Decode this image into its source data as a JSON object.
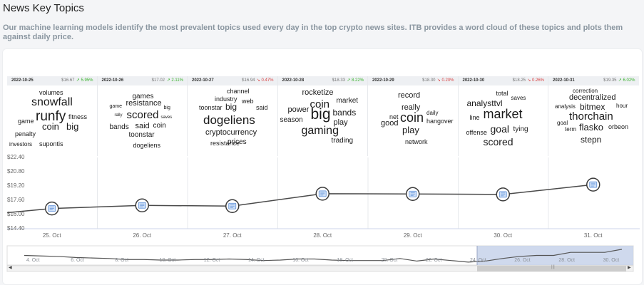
{
  "header": {
    "title": "News Key Topics",
    "subtitle": "Our machine learning models identify the most prevalent topics used every day in the top crypto news sites. ITB provides a word cloud of these topics and plots them against daily price."
  },
  "days": [
    {
      "date": "2022-10-25",
      "price": "$16.67",
      "change": "↗ 5.95%",
      "direction": "up",
      "words": [
        [
          "volumes",
          9
        ],
        [
          "snowfall",
          16
        ],
        [
          "runfy",
          19
        ],
        [
          "fitness",
          9
        ],
        [
          "game",
          9
        ],
        [
          "coin",
          13
        ],
        [
          "big",
          13
        ],
        [
          "penalty",
          9
        ],
        [
          "investors",
          8
        ],
        [
          "supontis",
          9
        ]
      ]
    },
    {
      "date": "2022-10-26",
      "price": "$17.02",
      "change": "↗ 2.11%",
      "direction": "up",
      "words": [
        [
          "games",
          10
        ],
        [
          "game",
          7
        ],
        [
          "resistance",
          11
        ],
        [
          "big",
          7
        ],
        [
          "rally",
          6
        ],
        [
          "scored",
          15
        ],
        [
          "saves",
          6
        ],
        [
          "bands",
          10
        ],
        [
          "said",
          11
        ],
        [
          "coin",
          10
        ],
        [
          "toonstar",
          10
        ],
        [
          "dogeliens",
          9
        ]
      ]
    },
    {
      "date": "2022-10-27",
      "price": "$16.94",
      "change": "↘ 0.47%",
      "direction": "down",
      "words": [
        [
          "channel",
          9
        ],
        [
          "industry",
          9
        ],
        [
          "web",
          9
        ],
        [
          "toonstar",
          9
        ],
        [
          "big",
          12
        ],
        [
          "said",
          9
        ],
        [
          "dogeliens",
          17
        ],
        [
          "cryptocurrency",
          11
        ],
        [
          "prices",
          10
        ],
        [
          "resistance",
          9
        ]
      ]
    },
    {
      "date": "2022-10-28",
      "price": "$18.33",
      "change": "↗ 8.22%",
      "direction": "up",
      "words": [
        [
          "rocketize",
          11
        ],
        [
          "market",
          10
        ],
        [
          "coin",
          15
        ],
        [
          "power",
          11
        ],
        [
          "big",
          21
        ],
        [
          "bands",
          12
        ],
        [
          "season",
          10
        ],
        [
          "play",
          11
        ],
        [
          "gaming",
          16
        ],
        [
          "trading",
          10
        ]
      ]
    },
    {
      "date": "2022-10-29",
      "price": "$18.30",
      "change": "↘ 0.20%",
      "direction": "down",
      "words": [
        [
          "record",
          11
        ],
        [
          "really",
          11
        ],
        [
          "net",
          9
        ],
        [
          "coin",
          18
        ],
        [
          "daily",
          8
        ],
        [
          "good",
          11
        ],
        [
          "hangover",
          9
        ],
        [
          "play",
          13
        ],
        [
          "network",
          9
        ]
      ]
    },
    {
      "date": "2022-10-30",
      "price": "$18.25",
      "change": "↘ 0.26%",
      "direction": "down",
      "words": [
        [
          "total",
          9
        ],
        [
          "analysttvl",
          12
        ],
        [
          "saves",
          8
        ],
        [
          "line",
          9
        ],
        [
          "market",
          18
        ],
        [
          "offense",
          9
        ],
        [
          "goal",
          14
        ],
        [
          "tying",
          10
        ],
        [
          "scored",
          14
        ]
      ]
    },
    {
      "date": "2022-10-31",
      "price": "$19.35",
      "change": "↗ 6.02%",
      "direction": "up",
      "words": [
        [
          "correction",
          8
        ],
        [
          "decentralized",
          11
        ],
        [
          "analysis",
          8
        ],
        [
          "bitmex",
          12
        ],
        [
          "hour",
          8
        ],
        [
          "thorchain",
          15
        ],
        [
          "goal",
          8
        ],
        [
          "term",
          8
        ],
        [
          "flasko",
          13
        ],
        [
          "orbeon",
          9
        ],
        [
          "stepn",
          12
        ]
      ]
    }
  ],
  "chart_data": {
    "type": "line",
    "x": [
      "25. Oct",
      "26. Oct",
      "27. Oct",
      "28. Oct",
      "29. Oct",
      "30. Oct",
      "31. Oct"
    ],
    "values": [
      16.67,
      17.02,
      16.94,
      18.33,
      18.3,
      18.25,
      19.35
    ],
    "y_ticks": [
      "$22.40",
      "$20.80",
      "$19.20",
      "$17.60",
      "$16.00",
      "$14.40"
    ],
    "ylim": [
      14.4,
      22.4
    ],
    "navigator": {
      "labels": [
        "4. Oct",
        "6. Oct",
        "8. Oct",
        "10. Oct",
        "12. Oct",
        "14. Oct",
        "16. Oct",
        "18. Oct",
        "20. Oct",
        "22. Oct",
        "24. Oct",
        "26. Oct",
        "28. Oct",
        "30. Oct"
      ],
      "values": [
        20.0,
        19.9,
        19.8,
        19.6,
        19.5,
        19.4,
        19.2,
        19.2,
        19.1,
        19.1,
        19.2,
        19.2,
        19.3,
        19.2,
        19.0,
        19.1,
        19.3,
        19.3,
        19.1,
        19.0,
        19.0,
        19.0,
        19.4,
        18.9,
        19.3,
        19.0,
        18.7,
        18.9,
        19.4,
        19.8,
        20.0,
        20.0,
        20.6,
        20.6,
        20.6,
        21.2
      ]
    }
  }
}
